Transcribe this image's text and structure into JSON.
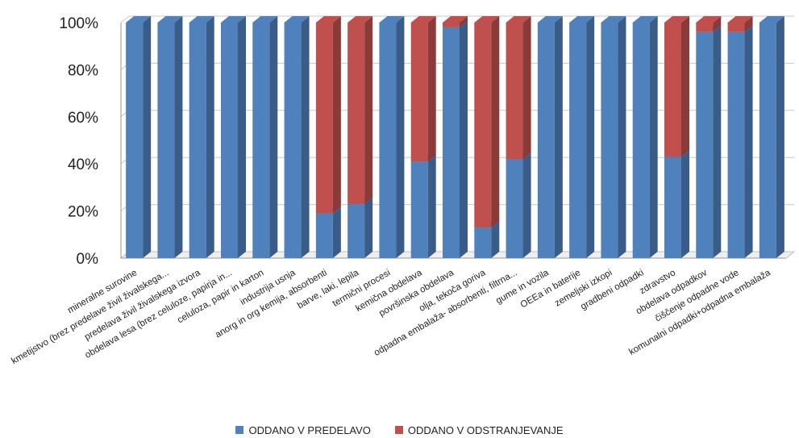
{
  "chart_data": {
    "type": "bar",
    "stacked": true,
    "percent_stacked": true,
    "three_d": true,
    "categories": [
      "mineralne surovine",
      "kmetijstvo (brez predelave živil živalskega...",
      "predelava živil živalskega izvora",
      "obdelava lesa (brez celuloze, papirja in...",
      "celuloza, papir in karton",
      "industrija usnja",
      "anorg in org kemija, absorbenti",
      "barve, laki, lepila",
      "termični procesi",
      "kemična obdelava",
      "površinska obdelava",
      "olja, tekoča goriva",
      "odpadna embalaža- absorbenti, filtrna...",
      "gume in vozila",
      "OEEa in baterije",
      "zemeljski izkopi",
      "gradbeni odpadki",
      "zdravstvo",
      "obdelava odpadkov",
      "čiščenje odpadne vode",
      "komunalni odpadki+odpadna embalaža"
    ],
    "series": [
      {
        "name": "ODDANO V PREDELAVO",
        "color": "#4f81bd",
        "values": [
          100,
          100,
          100,
          100,
          100,
          100,
          19,
          23,
          100,
          41,
          98,
          13,
          42,
          100,
          100,
          100,
          100,
          43,
          96,
          96,
          100
        ]
      },
      {
        "name": "ODDANO V ODSTRANJEVANJE",
        "color": "#c0504d",
        "values": [
          0,
          0,
          0,
          0,
          0,
          0,
          81,
          77,
          0,
          59,
          2,
          87,
          58,
          0,
          0,
          0,
          0,
          57,
          4,
          4,
          0
        ]
      }
    ],
    "yticks": [
      "0%",
      "20%",
      "40%",
      "60%",
      "80%",
      "100%"
    ],
    "ylim": [
      0,
      100
    ],
    "legend_position": "bottom",
    "grid": true
  }
}
